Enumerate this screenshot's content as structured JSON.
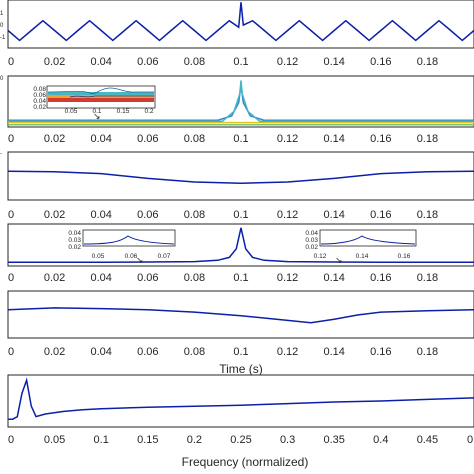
{
  "chart_data": [
    {
      "type": "line",
      "series": [
        {
          "color": "#0b1fa8",
          "shape": "sine with spike at 0.1",
          "x": [
            0.0,
            0.005,
            0.01,
            0.015,
            0.02,
            0.025,
            0.03,
            0.035,
            0.04,
            0.045,
            0.05,
            0.055,
            0.06,
            0.065,
            0.07,
            0.075,
            0.08,
            0.085,
            0.09,
            0.095,
            0.099,
            0.1,
            0.101,
            0.105,
            0.11,
            0.115,
            0.12,
            0.125,
            0.13,
            0.135,
            0.14,
            0.145,
            0.15,
            0.155,
            0.16,
            0.165,
            0.17,
            0.175,
            0.18,
            0.185,
            0.19,
            0.195,
            0.2
          ],
          "y": [
            0.0,
            -0.9,
            0.0,
            0.9,
            0.0,
            -0.9,
            0.0,
            0.9,
            0.0,
            -0.9,
            0.0,
            0.9,
            0.0,
            -0.9,
            0.0,
            0.9,
            0.0,
            -0.9,
            0.0,
            0.9,
            0.3,
            2.6,
            0.5,
            0.9,
            0.0,
            -0.9,
            0.0,
            0.9,
            0.0,
            -0.9,
            0.0,
            0.9,
            0.0,
            -0.9,
            0.0,
            0.9,
            0.0,
            -0.9,
            0.0,
            0.9,
            0.0,
            -0.9,
            0.0
          ]
        }
      ],
      "xticks": [
        "0",
        "0.02",
        "0.04",
        "0.06",
        "0.08",
        "0.1",
        "0.12",
        "0.14",
        "0.16",
        "0.18"
      ],
      "xlim": [
        0,
        0.2
      ],
      "ylim": [
        -1.6,
        2.8
      ],
      "inset": null
    },
    {
      "type": "line",
      "series": [
        {
          "color": "#7cc36c",
          "x": [
            0,
            0.2
          ],
          "y": [
            0.02,
            0.02
          ]
        },
        {
          "color": "#e0c020",
          "x": [
            0,
            0.2
          ],
          "y": [
            0.025,
            0.025
          ]
        },
        {
          "color": "#2e86c8",
          "x": [
            0,
            0.09,
            0.096,
            0.099,
            0.1,
            0.101,
            0.104,
            0.11,
            0.2
          ],
          "y": [
            0.03,
            0.03,
            0.04,
            0.07,
            0.11,
            0.07,
            0.04,
            0.03,
            0.03
          ]
        },
        {
          "color": "#46b5c9",
          "x": [
            0,
            0.092,
            0.097,
            0.0995,
            0.1,
            0.1005,
            0.103,
            0.108,
            0.2
          ],
          "y": [
            0.028,
            0.028,
            0.05,
            0.09,
            0.12,
            0.09,
            0.05,
            0.028,
            0.028
          ]
        }
      ],
      "xticks": [
        "0",
        "0.02",
        "0.04",
        "0.06",
        "0.08",
        "0.1",
        "0.12",
        "0.14",
        "0.16",
        "0.18"
      ],
      "xlim": [
        0,
        0.2
      ],
      "ylim": [
        0.015,
        0.13
      ],
      "inset": {
        "yticks": [
          "0.08",
          "0.06",
          "0.04",
          "0.02"
        ],
        "xticks": [
          "0.05",
          "0.1",
          "0.15",
          "0.2"
        ]
      }
    },
    {
      "type": "line",
      "series": [
        {
          "color": "#0b1fa8",
          "x": [
            0,
            0.02,
            0.04,
            0.06,
            0.08,
            0.1,
            0.12,
            0.14,
            0.16,
            0.18,
            0.2
          ],
          "y": [
            0.0,
            -0.02,
            -0.1,
            -0.3,
            -0.45,
            -0.5,
            -0.45,
            -0.3,
            -0.1,
            -0.02,
            0.0
          ]
        }
      ],
      "xticks": [
        "0",
        "0.02",
        "0.04",
        "0.06",
        "0.08",
        "0.1",
        "0.12",
        "0.14",
        "0.16",
        "0.18"
      ],
      "xlim": [
        0,
        0.2
      ],
      "ylim": [
        -1.2,
        0.8
      ],
      "inset": null
    },
    {
      "type": "line",
      "series": [
        {
          "color": "#0b1fa8",
          "x": [
            0,
            0.02,
            0.04,
            0.06,
            0.08,
            0.09,
            0.095,
            0.098,
            0.1,
            0.102,
            0.105,
            0.11,
            0.12,
            0.14,
            0.16,
            0.18,
            0.2
          ],
          "y": [
            0.02,
            0.02,
            0.02,
            0.021,
            0.023,
            0.03,
            0.045,
            0.09,
            0.2,
            0.09,
            0.045,
            0.03,
            0.023,
            0.021,
            0.02,
            0.02,
            0.02
          ]
        }
      ],
      "xticks": [
        "0",
        "0.02",
        "0.04",
        "0.06",
        "0.08",
        "0.1",
        "0.12",
        "0.14",
        "0.16",
        "0.18"
      ],
      "xlim": [
        0,
        0.2
      ],
      "ylim": [
        0.0,
        0.22
      ],
      "inset": {
        "left": {
          "yticks": [
            "0.04",
            "0.03",
            "0.02"
          ],
          "xticks": [
            "0.05",
            "0.06",
            "0.07"
          ]
        },
        "right": {
          "yticks": [
            "0.04",
            "0.03",
            "0.02"
          ],
          "xticks": [
            "0.12",
            "0.14",
            "0.16"
          ]
        }
      }
    },
    {
      "type": "line",
      "series": [
        {
          "color": "#0b1fa8",
          "x": [
            0,
            0.02,
            0.04,
            0.06,
            0.08,
            0.1,
            0.12,
            0.13,
            0.14,
            0.15,
            0.16,
            0.18,
            0.2
          ],
          "y": [
            0.0,
            0.08,
            0.05,
            0.0,
            -0.1,
            -0.25,
            -0.45,
            -0.55,
            -0.4,
            -0.22,
            -0.1,
            -0.04,
            0.0
          ]
        }
      ],
      "xticks": [
        "0",
        "0.02",
        "0.04",
        "0.06",
        "0.08",
        "0.1",
        "0.12",
        "0.14",
        "0.16",
        "0.18"
      ],
      "xlabel": "Time (s)",
      "xlim": [
        0,
        0.2
      ],
      "ylim": [
        -1.2,
        0.8
      ],
      "inset": null
    },
    {
      "type": "line",
      "series": [
        {
          "color": "#0b1fa8",
          "x": [
            0.0,
            0.005,
            0.01,
            0.015,
            0.02,
            0.025,
            0.03,
            0.04,
            0.06,
            0.08,
            0.1,
            0.15,
            0.2,
            0.25,
            0.3,
            0.35,
            0.4,
            0.45,
            0.5
          ],
          "y": [
            0.15,
            0.15,
            0.2,
            0.65,
            0.9,
            0.4,
            0.2,
            0.25,
            0.3,
            0.33,
            0.35,
            0.38,
            0.4,
            0.42,
            0.45,
            0.48,
            0.5,
            0.53,
            0.56
          ]
        }
      ],
      "xticks": [
        "0",
        "0.05",
        "0.1",
        "0.15",
        "0.2",
        "0.25",
        "0.3",
        "0.35",
        "0.4",
        "0.45",
        "0"
      ],
      "xlabel": "Frequency (normalized)",
      "xlim": [
        0,
        0.5
      ],
      "ylim": [
        0.0,
        1.0
      ],
      "inset": null
    }
  ]
}
